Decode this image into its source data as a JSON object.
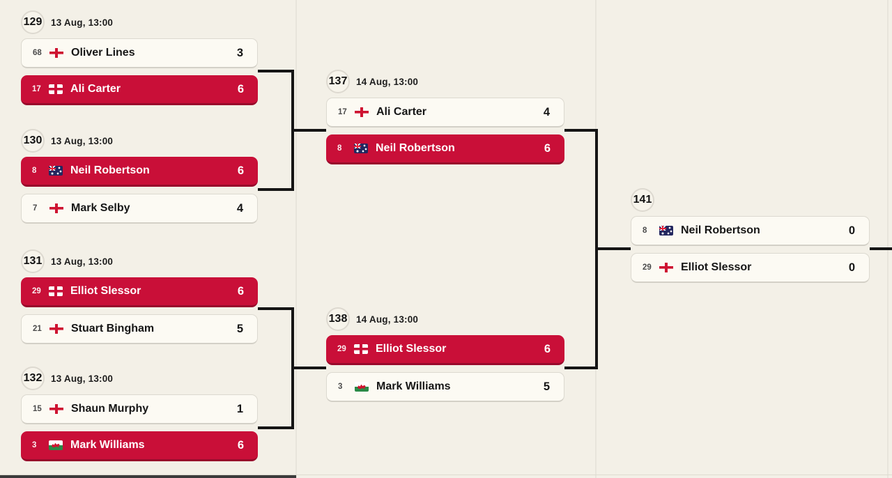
{
  "colors": {
    "page_background": "#f3f0e7",
    "winner_red": "#c90f38",
    "connector_black": "#151515",
    "card_background": "#fcfaf3"
  },
  "matches": [
    {
      "id": "129",
      "date": "13 Aug, 13:00",
      "p1": {
        "seed": "68",
        "flag": "england",
        "name": "Oliver Lines",
        "score": "3",
        "winner": "false"
      },
      "p2": {
        "seed": "17",
        "flag": "england",
        "name": "Ali Carter",
        "score": "6",
        "winner": "true"
      }
    },
    {
      "id": "130",
      "date": "13 Aug, 13:00",
      "p1": {
        "seed": "8",
        "flag": "australia",
        "name": "Neil Robertson",
        "score": "6",
        "winner": "true"
      },
      "p2": {
        "seed": "7",
        "flag": "england",
        "name": "Mark Selby",
        "score": "4",
        "winner": "false"
      }
    },
    {
      "id": "131",
      "date": "13 Aug, 13:00",
      "p1": {
        "seed": "29",
        "flag": "england",
        "name": "Elliot Slessor",
        "score": "6",
        "winner": "true"
      },
      "p2": {
        "seed": "21",
        "flag": "england",
        "name": "Stuart Bingham",
        "score": "5",
        "winner": "false"
      }
    },
    {
      "id": "132",
      "date": "13 Aug, 13:00",
      "p1": {
        "seed": "15",
        "flag": "england",
        "name": "Shaun Murphy",
        "score": "1",
        "winner": "false"
      },
      "p2": {
        "seed": "3",
        "flag": "wales",
        "name": "Mark Williams",
        "score": "6",
        "winner": "true"
      }
    },
    {
      "id": "137",
      "date": "14 Aug, 13:00",
      "p1": {
        "seed": "17",
        "flag": "england",
        "name": "Ali Carter",
        "score": "4",
        "winner": "false"
      },
      "p2": {
        "seed": "8",
        "flag": "australia",
        "name": "Neil Robertson",
        "score": "6",
        "winner": "true"
      }
    },
    {
      "id": "138",
      "date": "14 Aug, 13:00",
      "p1": {
        "seed": "29",
        "flag": "england",
        "name": "Elliot Slessor",
        "score": "6",
        "winner": "true"
      },
      "p2": {
        "seed": "3",
        "flag": "wales",
        "name": "Mark Williams",
        "score": "5",
        "winner": "false"
      }
    },
    {
      "id": "141",
      "date": "",
      "p1": {
        "seed": "8",
        "flag": "australia",
        "name": "Neil Robertson",
        "score": "0",
        "winner": "false"
      },
      "p2": {
        "seed": "29",
        "flag": "england",
        "name": "Elliot Slessor",
        "score": "0",
        "winner": "false"
      }
    }
  ]
}
